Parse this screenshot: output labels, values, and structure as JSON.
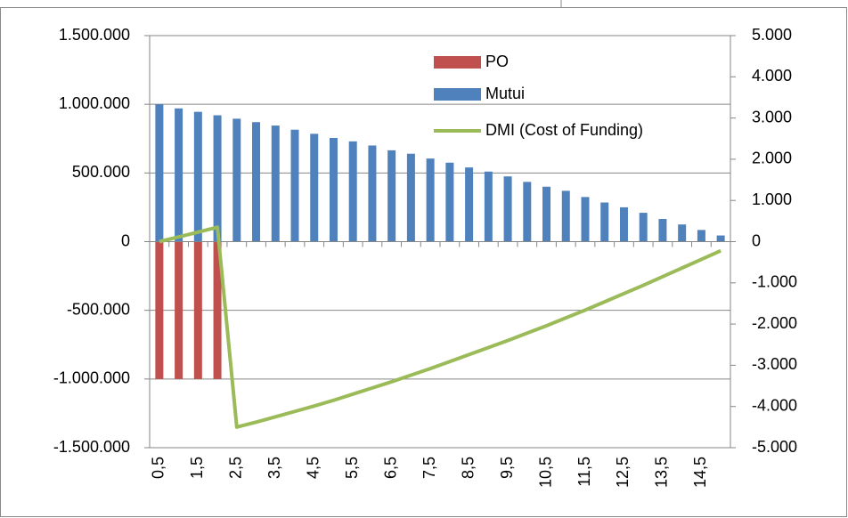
{
  "chart_data": {
    "type": "bar",
    "categories": [
      "0,5",
      null,
      "1,5",
      null,
      "2,5",
      null,
      "3,5",
      null,
      "4,5",
      null,
      "5,5",
      null,
      "6,5",
      null,
      "7,5",
      null,
      "8,5",
      null,
      "9,5",
      null,
      "10,5",
      null,
      "11,5",
      null,
      "12,5",
      null,
      "13,5",
      null,
      "14,5",
      null
    ],
    "series": [
      {
        "name": "PO",
        "type": "bar",
        "color": "#c0504d",
        "values": [
          -1000000,
          -1000000,
          -1000000,
          -1000000,
          null,
          null,
          null,
          null,
          null,
          null,
          null,
          null,
          null,
          null,
          null,
          null,
          null,
          null,
          null,
          null,
          null,
          null,
          null,
          null,
          null,
          null,
          null,
          null,
          null,
          null
        ]
      },
      {
        "name": "Mutui",
        "type": "bar",
        "color": "#4f81bd",
        "values": [
          1000000,
          970000,
          945000,
          920000,
          895000,
          870000,
          845000,
          815000,
          785000,
          755000,
          730000,
          700000,
          665000,
          640000,
          605000,
          575000,
          540000,
          510000,
          475000,
          435000,
          400000,
          370000,
          325000,
          285000,
          250000,
          210000,
          165000,
          125000,
          85000,
          45000
        ]
      },
      {
        "name": "DMI (Cost of Funding)",
        "type": "line",
        "axis": "y2",
        "color": "#9bbb59",
        "values": [
          0,
          115,
          230,
          350,
          -4500,
          -4380,
          -4250,
          -4120,
          -3990,
          -3850,
          -3700,
          -3550,
          -3400,
          -3240,
          -3080,
          -2910,
          -2740,
          -2570,
          -2400,
          -2220,
          -2040,
          -1850,
          -1660,
          -1460,
          -1260,
          -1060,
          -850,
          -640,
          -430,
          -220
        ]
      }
    ],
    "ylim": [
      -1500000,
      1500000
    ],
    "yticks": [
      {
        "value": -1500000,
        "label": "-1.500.000"
      },
      {
        "value": -1000000,
        "label": "-1.000.000"
      },
      {
        "value": -500000,
        "label": "-500.000"
      },
      0,
      {
        "value": 500000,
        "label": "500.000"
      },
      {
        "value": 1000000,
        "label": "1.000.000"
      },
      {
        "value": 1500000,
        "label": "1.500.000"
      }
    ],
    "y2lim": [
      -5000,
      5000
    ],
    "y2ticks": [
      {
        "value": -5000,
        "label": "-5.000"
      },
      {
        "value": -4000,
        "label": "-4.000"
      },
      {
        "value": -3000,
        "label": "-3.000"
      },
      {
        "value": -2000,
        "label": "-2.000"
      },
      {
        "value": -1000,
        "label": "-1.000"
      },
      0,
      {
        "value": 1000,
        "label": "1.000"
      },
      {
        "value": 2000,
        "label": "2.000"
      },
      {
        "value": 3000,
        "label": "3.000"
      },
      {
        "value": 4000,
        "label": "4.000"
      },
      {
        "value": 5000,
        "label": "5.000"
      }
    ],
    "grid": true,
    "legend": "top"
  }
}
